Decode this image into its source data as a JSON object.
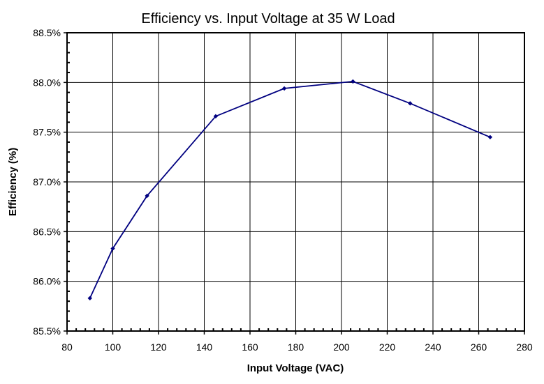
{
  "chart_data": {
    "type": "line",
    "title": "Efficiency vs. Input Voltage at 35 W Load",
    "xlabel": "Input Voltage (VAC)",
    "ylabel": "Efficiency (%)",
    "xlim": [
      80,
      280
    ],
    "ylim": [
      85.5,
      88.5
    ],
    "x_ticks": [
      80,
      100,
      120,
      140,
      160,
      180,
      200,
      220,
      240,
      260,
      280
    ],
    "y_ticks": [
      85.5,
      86.0,
      86.5,
      87.0,
      87.5,
      88.0,
      88.5
    ],
    "y_tick_labels": [
      "85.5%",
      "86.0%",
      "86.5%",
      "87.0%",
      "87.5%",
      "88.0%",
      "88.5%"
    ],
    "grid": true,
    "series": [
      {
        "color": "#000080",
        "x": [
          90,
          100,
          115,
          145,
          175,
          205,
          230,
          265
        ],
        "y": [
          85.83,
          86.33,
          86.86,
          87.66,
          87.94,
          88.01,
          87.79,
          87.45
        ]
      }
    ]
  }
}
